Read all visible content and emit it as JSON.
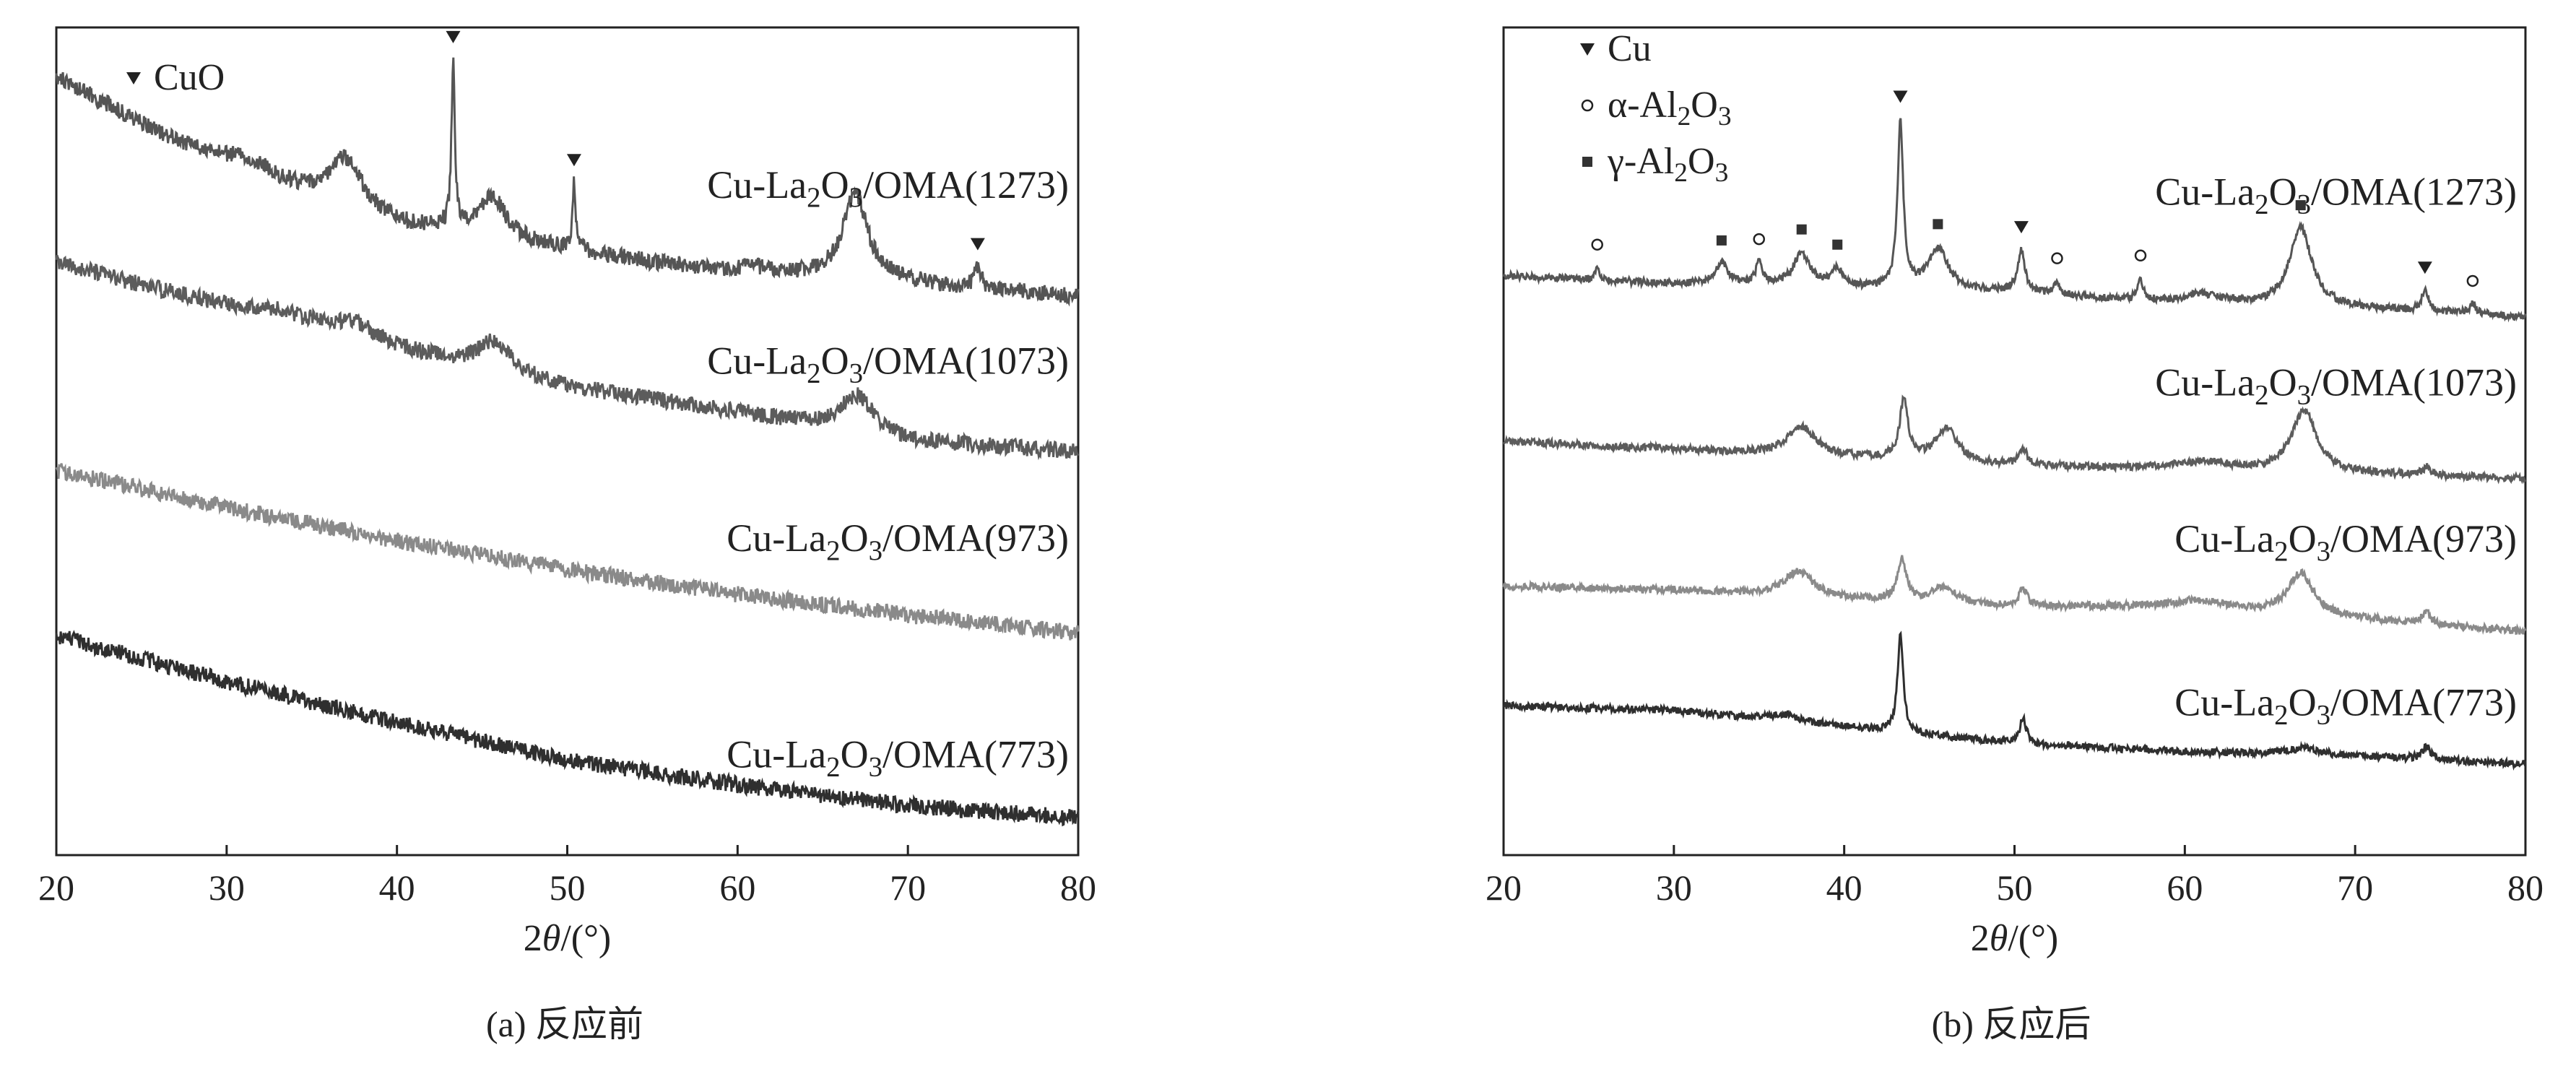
{
  "chart_data": [
    {
      "type": "line",
      "panel": "a",
      "caption": "(a) 反应前",
      "xlabel_main": "2",
      "xlabel_theta": "θ",
      "xlabel_unit": "/(°)",
      "ylabel": "",
      "xlim": [
        20,
        80
      ],
      "xticks": [
        20,
        30,
        40,
        50,
        60,
        70,
        80
      ],
      "yticks_shown": false,
      "grid": false,
      "legend": [
        {
          "symbol": "filled-triangle-down",
          "label": "CuO"
        }
      ],
      "series": [
        {
          "name": "Cu-La2O3/OMA(1273)",
          "label": {
            "pre": "Cu-La",
            "sub1": "2",
            "mid": "O",
            "sub2": "3",
            "post": "/OMA(1273)"
          },
          "color": "#555555",
          "baseline": [
            [
              20,
              0.94
            ],
            [
              30,
              0.825
            ],
            [
              40,
              0.76
            ],
            [
              50,
              0.73
            ],
            [
              60,
              0.7
            ],
            [
              70,
              0.69
            ],
            [
              80,
              0.675
            ]
          ],
          "peaks": [
            {
              "x": 31.0,
              "h": 0.025,
              "w": 2.0
            },
            {
              "x": 37.0,
              "h": 0.06,
              "w": 1.2
            },
            {
              "x": 43.3,
              "h": 0.2,
              "w": 0.12
            },
            {
              "x": 45.6,
              "h": 0.05,
              "w": 1.0
            },
            {
              "x": 50.4,
              "h": 0.08,
              "w": 0.12
            },
            {
              "x": 61.0,
              "h": 0.01,
              "w": 2.0
            },
            {
              "x": 66.9,
              "h": 0.105,
              "w": 0.9
            },
            {
              "x": 74.1,
              "h": 0.025,
              "w": 0.25
            }
          ],
          "markers": [
            {
              "x": 43.3,
              "symbol": "filled-triangle-down"
            },
            {
              "x": 50.4,
              "symbol": "filled-triangle-down"
            },
            {
              "x": 74.1,
              "symbol": "filled-triangle-down"
            }
          ]
        },
        {
          "name": "Cu-La2O3/OMA(1073)",
          "label": {
            "pre": "Cu-La",
            "sub1": "2",
            "mid": "O",
            "sub2": "3",
            "post": "/OMA(1073)"
          },
          "color": "#5c5c5c",
          "baseline": [
            [
              20,
              0.715
            ],
            [
              30,
              0.66
            ],
            [
              40,
              0.61
            ],
            [
              50,
              0.565
            ],
            [
              60,
              0.535
            ],
            [
              70,
              0.5
            ],
            [
              80,
              0.487
            ]
          ],
          "peaks": [
            {
              "x": 33.0,
              "h": 0.012,
              "w": 3.0
            },
            {
              "x": 37.5,
              "h": 0.018,
              "w": 1.5
            },
            {
              "x": 45.7,
              "h": 0.035,
              "w": 1.2
            },
            {
              "x": 67.0,
              "h": 0.045,
              "w": 1.2
            }
          ],
          "markers": []
        },
        {
          "name": "Cu-La2O3/OMA(973)",
          "label": {
            "pre": "Cu-La",
            "sub1": "2",
            "mid": "O",
            "sub2": "3",
            "post": "/OMA(973)"
          },
          "color": "#8a8a8a",
          "baseline": [
            [
              20,
              0.465
            ],
            [
              30,
              0.42
            ],
            [
              40,
              0.38
            ],
            [
              50,
              0.345
            ],
            [
              60,
              0.315
            ],
            [
              70,
              0.29
            ],
            [
              80,
              0.268
            ]
          ],
          "peaks": [],
          "markers": []
        },
        {
          "name": "Cu-La2O3/OMA(773)",
          "label": {
            "pre": "Cu-La",
            "sub1": "2",
            "mid": "O",
            "sub2": "3",
            "post": "/OMA(773)"
          },
          "color": "#2f2f2f",
          "baseline": [
            [
              20,
              0.265
            ],
            [
              30,
              0.21
            ],
            [
              40,
              0.16
            ],
            [
              50,
              0.115
            ],
            [
              60,
              0.085
            ],
            [
              70,
              0.06
            ],
            [
              80,
              0.045
            ]
          ],
          "peaks": [],
          "markers": []
        }
      ]
    },
    {
      "type": "line",
      "panel": "b",
      "caption": "(b) 反应后",
      "xlabel_main": "2",
      "xlabel_theta": "θ",
      "xlabel_unit": "/(°)",
      "ylabel": "",
      "xlim": [
        20,
        80
      ],
      "xticks": [
        20,
        30,
        40,
        50,
        60,
        70,
        80
      ],
      "yticks_shown": false,
      "grid": false,
      "legend": [
        {
          "symbol": "filled-triangle-down",
          "label": "Cu"
        },
        {
          "symbol": "open-circle",
          "label": "α-Al",
          "sub": "2",
          "post": "O",
          "sub2": "3"
        },
        {
          "symbol": "filled-square",
          "label": "γ-Al",
          "sub": "2",
          "post": "O",
          "sub2": "3"
        }
      ],
      "series": [
        {
          "name": "Cu-La2O3/OMA(1273)",
          "label": {
            "pre": "Cu-La",
            "sub1": "2",
            "mid": "O",
            "sub2": "3",
            "post": "/OMA(1273)"
          },
          "color": "#555555",
          "baseline": [
            [
              20,
              0.7
            ],
            [
              30,
              0.69
            ],
            [
              40,
              0.685
            ],
            [
              50,
              0.68
            ],
            [
              60,
              0.665
            ],
            [
              70,
              0.66
            ],
            [
              80,
              0.65
            ]
          ],
          "peaks": [
            {
              "x": 25.5,
              "h": 0.015,
              "w": 0.15
            },
            {
              "x": 32.8,
              "h": 0.025,
              "w": 0.5
            },
            {
              "x": 35.0,
              "h": 0.025,
              "w": 0.25
            },
            {
              "x": 37.5,
              "h": 0.04,
              "w": 0.6
            },
            {
              "x": 39.6,
              "h": 0.02,
              "w": 0.4
            },
            {
              "x": 43.3,
              "h": 0.2,
              "w": 0.2
            },
            {
              "x": 45.5,
              "h": 0.05,
              "w": 0.7
            },
            {
              "x": 50.4,
              "h": 0.05,
              "w": 0.25
            },
            {
              "x": 52.5,
              "h": 0.015,
              "w": 0.2
            },
            {
              "x": 57.4,
              "h": 0.025,
              "w": 0.2
            },
            {
              "x": 61.0,
              "h": 0.012,
              "w": 1.5
            },
            {
              "x": 66.8,
              "h": 0.095,
              "w": 0.8
            },
            {
              "x": 74.1,
              "h": 0.025,
              "w": 0.25
            },
            {
              "x": 76.9,
              "h": 0.012,
              "w": 0.25
            }
          ],
          "markers": [
            {
              "x": 25.5,
              "symbol": "open-circle"
            },
            {
              "x": 32.8,
              "symbol": "filled-square"
            },
            {
              "x": 35.0,
              "symbol": "open-circle"
            },
            {
              "x": 37.5,
              "symbol": "filled-square"
            },
            {
              "x": 39.6,
              "symbol": "filled-square"
            },
            {
              "x": 43.3,
              "symbol": "filled-triangle-down"
            },
            {
              "x": 45.5,
              "symbol": "filled-square"
            },
            {
              "x": 50.4,
              "symbol": "filled-triangle-down"
            },
            {
              "x": 52.5,
              "symbol": "open-circle"
            },
            {
              "x": 57.4,
              "symbol": "open-circle"
            },
            {
              "x": 66.8,
              "symbol": "filled-square"
            },
            {
              "x": 74.1,
              "symbol": "filled-triangle-down"
            },
            {
              "x": 76.9,
              "symbol": "open-circle"
            }
          ]
        },
        {
          "name": "Cu-La2O3/OMA(1073)",
          "label": {
            "pre": "Cu-La",
            "sub1": "2",
            "mid": "O",
            "sub2": "3",
            "post": "/OMA(1073)"
          },
          "color": "#5c5c5c",
          "baseline": [
            [
              20,
              0.5
            ],
            [
              30,
              0.49
            ],
            [
              40,
              0.48
            ],
            [
              50,
              0.47
            ],
            [
              60,
              0.465
            ],
            [
              70,
              0.46
            ],
            [
              80,
              0.455
            ]
          ],
          "peaks": [
            {
              "x": 37.5,
              "h": 0.035,
              "w": 1.0
            },
            {
              "x": 43.5,
              "h": 0.07,
              "w": 0.3
            },
            {
              "x": 46.0,
              "h": 0.04,
              "w": 0.8
            },
            {
              "x": 50.5,
              "h": 0.02,
              "w": 0.3
            },
            {
              "x": 61.0,
              "h": 0.01,
              "w": 2.0
            },
            {
              "x": 67.0,
              "h": 0.075,
              "w": 0.9
            },
            {
              "x": 74.2,
              "h": 0.01,
              "w": 0.3
            }
          ],
          "markers": []
        },
        {
          "name": "Cu-La2O3/OMA(973)",
          "label": {
            "pre": "Cu-La",
            "sub1": "2",
            "mid": "O",
            "sub2": "3",
            "post": "/OMA(973)"
          },
          "color": "#8a8a8a",
          "baseline": [
            [
              20,
              0.325
            ],
            [
              30,
              0.32
            ],
            [
              40,
              0.31
            ],
            [
              50,
              0.3
            ],
            [
              60,
              0.3
            ],
            [
              70,
              0.285
            ],
            [
              80,
              0.27
            ]
          ],
          "peaks": [
            {
              "x": 37.3,
              "h": 0.03,
              "w": 1.0
            },
            {
              "x": 43.4,
              "h": 0.05,
              "w": 0.3
            },
            {
              "x": 45.8,
              "h": 0.02,
              "w": 0.8
            },
            {
              "x": 50.5,
              "h": 0.02,
              "w": 0.3
            },
            {
              "x": 61.0,
              "h": 0.008,
              "w": 2.0
            },
            {
              "x": 66.8,
              "h": 0.05,
              "w": 0.9
            },
            {
              "x": 74.2,
              "h": 0.015,
              "w": 0.3
            }
          ],
          "markers": []
        },
        {
          "name": "Cu-La2O3/OMA(773)",
          "label": {
            "pre": "Cu-La",
            "sub1": "2",
            "mid": "O",
            "sub2": "3",
            "post": "/OMA(773)"
          },
          "color": "#2f2f2f",
          "baseline": [
            [
              20,
              0.18
            ],
            [
              30,
              0.175
            ],
            [
              40,
              0.155
            ],
            [
              50,
              0.135
            ],
            [
              60,
              0.125
            ],
            [
              70,
              0.12
            ],
            [
              80,
              0.11
            ]
          ],
          "peaks": [
            {
              "x": 36.5,
              "h": 0.008,
              "w": 1.0
            },
            {
              "x": 43.3,
              "h": 0.12,
              "w": 0.2
            },
            {
              "x": 50.5,
              "h": 0.03,
              "w": 0.25
            },
            {
              "x": 67.0,
              "h": 0.008,
              "w": 1.0
            },
            {
              "x": 74.2,
              "h": 0.015,
              "w": 0.3
            }
          ],
          "markers": []
        }
      ]
    }
  ]
}
